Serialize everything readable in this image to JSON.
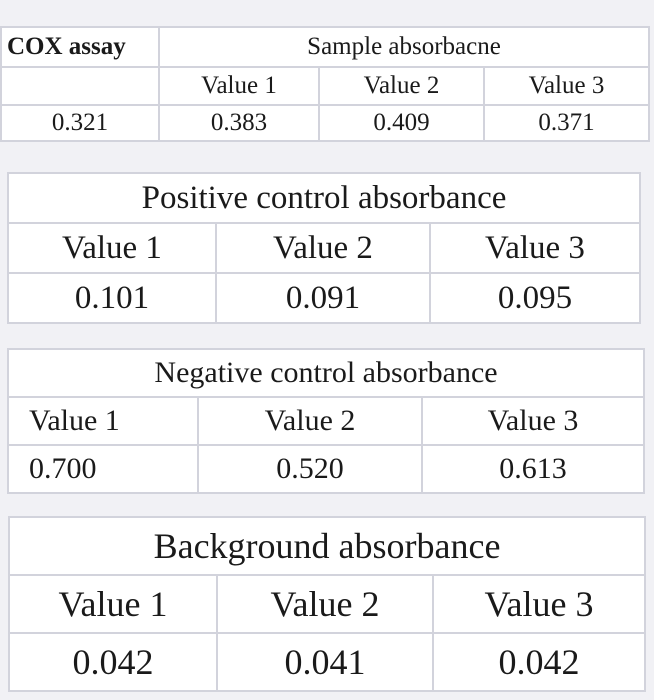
{
  "cox_table": {
    "row_label_header": "COX assay",
    "group_header": "Sample absorbacne",
    "columns": [
      "Value 1",
      "Value 2",
      "Value 3"
    ],
    "row_label_value": "0.321",
    "values": [
      "0.383",
      "0.409",
      "0.371"
    ]
  },
  "positive_control": {
    "title": "Positive control absorbance",
    "columns": [
      "Value 1",
      "Value 2",
      "Value 3"
    ],
    "values": [
      "0.101",
      "0.091",
      "0.095"
    ]
  },
  "negative_control": {
    "title": "Negative control absorbance",
    "columns": [
      "Value 1",
      "Value 2",
      "Value 3"
    ],
    "values": [
      "0.700",
      "0.520",
      "0.613"
    ]
  },
  "background": {
    "title": "Background absorbance",
    "columns": [
      "Value 1",
      "Value 2",
      "Value 3"
    ],
    "values": [
      "0.042",
      "0.041",
      "0.042"
    ]
  }
}
